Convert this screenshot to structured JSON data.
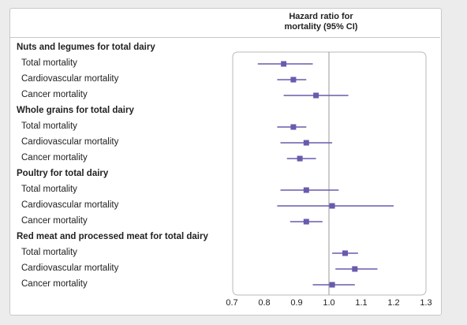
{
  "chart_data": {
    "type": "forest",
    "column_title": [
      "Hazard ratio for",
      "mortality (95% CI)"
    ],
    "xlim": [
      0.7,
      1.3
    ],
    "xticks": [
      0.7,
      0.8,
      0.9,
      1.0,
      1.1,
      1.2,
      1.3
    ],
    "xtick_labels": [
      "0.7",
      "0.8",
      "0.9",
      "1.0",
      "1.1",
      "1.2",
      "1.3"
    ],
    "reference_line": 1.0,
    "colors": {
      "marker": "#6a5aad",
      "reference": "#9a9a9a",
      "text": "#222222"
    },
    "groups": [
      {
        "label": "Nuts and legumes for total dairy",
        "rows": [
          {
            "label": "Total mortality",
            "hr": 0.86,
            "lo": 0.78,
            "hi": 0.95
          },
          {
            "label": "Cardiovascular mortality",
            "hr": 0.89,
            "lo": 0.84,
            "hi": 0.93
          },
          {
            "label": "Cancer mortality",
            "hr": 0.96,
            "lo": 0.86,
            "hi": 1.06
          }
        ]
      },
      {
        "label": "Whole grains for total dairy",
        "rows": [
          {
            "label": "Total mortality",
            "hr": 0.89,
            "lo": 0.84,
            "hi": 0.93
          },
          {
            "label": "Cardiovascular mortality",
            "hr": 0.93,
            "lo": 0.85,
            "hi": 1.01
          },
          {
            "label": "Cancer mortality",
            "hr": 0.91,
            "lo": 0.87,
            "hi": 0.96
          }
        ]
      },
      {
        "label": "Poultry for total dairy",
        "rows": [
          {
            "label": "Total mortality",
            "hr": 0.93,
            "lo": 0.85,
            "hi": 1.03
          },
          {
            "label": "Cardiovascular mortality",
            "hr": 1.01,
            "lo": 0.84,
            "hi": 1.2
          },
          {
            "label": "Cancer mortality",
            "hr": 0.93,
            "lo": 0.88,
            "hi": 0.98
          }
        ]
      },
      {
        "label": "Red meat and processed meat for total dairy",
        "rows": [
          {
            "label": "Total mortality",
            "hr": 1.05,
            "lo": 1.01,
            "hi": 1.09
          },
          {
            "label": "Cardiovascular mortality",
            "hr": 1.08,
            "lo": 1.02,
            "hi": 1.15
          },
          {
            "label": "Cancer mortality",
            "hr": 1.01,
            "lo": 0.95,
            "hi": 1.08
          }
        ]
      }
    ]
  }
}
